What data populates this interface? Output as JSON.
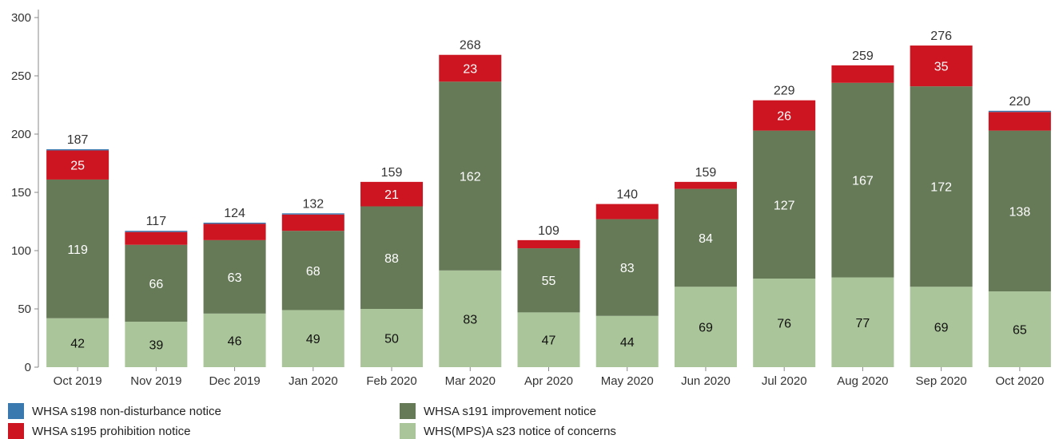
{
  "chart_data": {
    "type": "bar",
    "stacked": true,
    "categories": [
      "Oct 2019",
      "Nov 2019",
      "Dec 2019",
      "Jan 2020",
      "Feb 2020",
      "Mar 2020",
      "Apr 2020",
      "May 2020",
      "Jun 2020",
      "Jul 2020",
      "Aug 2020",
      "Sep 2020",
      "Oct 2020"
    ],
    "series": [
      {
        "name": "WHS(MPS)A s23 notice of concerns",
        "color": "#abc59a",
        "values": [
          42,
          39,
          46,
          49,
          50,
          83,
          47,
          44,
          69,
          76,
          77,
          69,
          65
        ],
        "show_labels": [
          true,
          true,
          true,
          true,
          true,
          true,
          true,
          true,
          true,
          true,
          true,
          true,
          true
        ],
        "label_color": "#111111"
      },
      {
        "name": "WHSA s191 improvement notice",
        "color": "#667a58",
        "values": [
          119,
          66,
          63,
          68,
          88,
          162,
          55,
          83,
          84,
          127,
          167,
          172,
          138
        ],
        "show_labels": [
          true,
          true,
          true,
          true,
          true,
          true,
          true,
          true,
          true,
          true,
          true,
          true,
          true
        ],
        "label_color": "#ffffff"
      },
      {
        "name": "WHSA s195 prohibition notice",
        "color": "#cc1520",
        "values": [
          25,
          11,
          14,
          14,
          21,
          23,
          7,
          13,
          6,
          26,
          15,
          35,
          16
        ],
        "show_labels": [
          true,
          false,
          false,
          false,
          true,
          true,
          false,
          false,
          false,
          true,
          false,
          true,
          false
        ],
        "label_color": "#ffffff"
      },
      {
        "name": "WHSA s198 non-disturbance notice",
        "color": "#3a78b0",
        "values": [
          1,
          1,
          1,
          1,
          0,
          0,
          0,
          0,
          0,
          0,
          0,
          0,
          1
        ],
        "show_labels": [
          false,
          false,
          false,
          false,
          false,
          false,
          false,
          false,
          false,
          false,
          false,
          false,
          false
        ],
        "label_color": "#ffffff"
      }
    ],
    "totals": [
      187,
      117,
      124,
      132,
      159,
      268,
      109,
      140,
      159,
      229,
      259,
      276,
      220
    ],
    "ylim": [
      0,
      300
    ],
    "yticks": [
      0,
      50,
      100,
      150,
      200,
      250,
      300
    ],
    "grid": false,
    "legend_position": "bottom"
  },
  "legend": [
    {
      "label": "WHSA s198 non-disturbance notice",
      "color": "#3a78b0"
    },
    {
      "label": "WHSA s195 prohibition notice",
      "color": "#cc1520"
    },
    {
      "label": "WHSA s191 improvement notice",
      "color": "#667a58"
    },
    {
      "label": "WHS(MPS)A s23 notice of concerns",
      "color": "#abc59a"
    }
  ]
}
